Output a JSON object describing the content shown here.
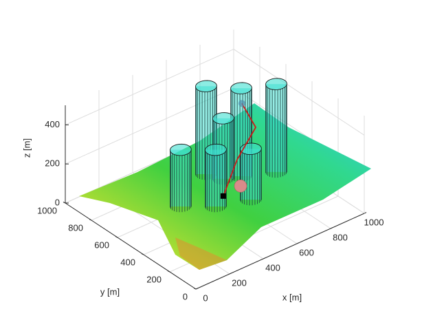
{
  "chart_data": {
    "type": "surface3d",
    "xlabel": "x [m]",
    "ylabel": "y [m]",
    "zlabel": "z [m]",
    "xlim": [
      0,
      1000
    ],
    "ylim": [
      0,
      1000
    ],
    "zlim": [
      0,
      500
    ],
    "xticks": [
      0,
      200,
      400,
      600,
      800,
      1000
    ],
    "yticks": [
      0,
      200,
      400,
      600,
      800,
      1000
    ],
    "zticks": [
      0,
      200,
      400
    ],
    "grid": true,
    "cylinders": {
      "color": "#40e0d0",
      "radius": 50,
      "x": [
        652,
        765,
        911,
        687,
        389,
        513,
        673
      ],
      "y": [
        762,
        639,
        559,
        676,
        618,
        509,
        447
      ],
      "height": [
        450,
        450,
        450,
        310,
        290,
        290,
        260
      ]
    },
    "path": {
      "color": "#d01818",
      "x": [
        543,
        681,
        816,
        822
      ],
      "y": [
        490,
        563,
        594,
        708
      ],
      "z": [
        50,
        150,
        250,
        320
      ]
    },
    "spheres": {
      "color": "#d88a8a",
      "x": [
        626
      ],
      "y": [
        465
      ],
      "z": [
        80
      ]
    }
  }
}
